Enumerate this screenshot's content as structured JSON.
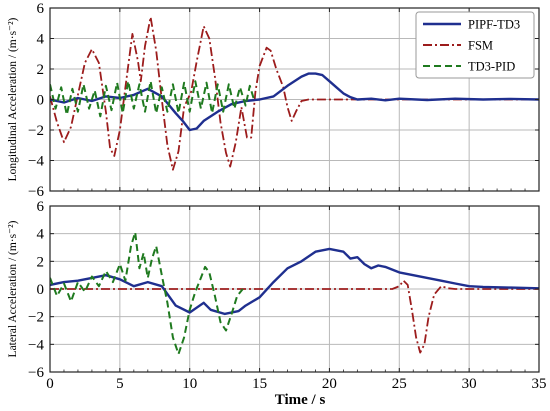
{
  "chart_data": [
    {
      "type": "line",
      "ylabel": "Longitudinal Acceleration / (m·s⁻²)",
      "xlabel": "",
      "xlim": [
        0,
        35
      ],
      "ylim": [
        -6,
        6
      ],
      "x_ticks": [
        "0",
        "5",
        "10",
        "15",
        "20",
        "25",
        "30",
        "35"
      ],
      "y_ticks": [
        "−6",
        "−4",
        "−2",
        "0",
        "2",
        "4",
        "6"
      ],
      "grid": true,
      "legend": {
        "placement": "top-right",
        "entries": [
          "PIPF-TD3",
          "FSM",
          "TD3-PID"
        ]
      },
      "series": [
        {
          "name": "PIPF-TD3",
          "color": "#1f2f8f",
          "style": "solid",
          "points": [
            [
              0,
              0
            ],
            [
              1,
              -0.2
            ],
            [
              2,
              0.1
            ],
            [
              3,
              -0.1
            ],
            [
              4,
              0.2
            ],
            [
              5,
              0.1
            ],
            [
              6,
              0.3
            ],
            [
              7,
              0.7
            ],
            [
              8,
              0.2
            ],
            [
              9,
              -0.9
            ],
            [
              9.5,
              -1.4
            ],
            [
              10,
              -2.0
            ],
            [
              10.5,
              -1.9
            ],
            [
              11,
              -1.4
            ],
            [
              12,
              -0.8
            ],
            [
              13,
              -0.3
            ],
            [
              14,
              -0.1
            ],
            [
              15,
              0.0
            ],
            [
              16,
              0.2
            ],
            [
              17,
              0.9
            ],
            [
              18,
              1.5
            ],
            [
              18.5,
              1.7
            ],
            [
              19,
              1.7
            ],
            [
              19.5,
              1.6
            ],
            [
              20,
              1.2
            ],
            [
              20.5,
              0.8
            ],
            [
              21,
              0.4
            ],
            [
              21.5,
              0.15
            ],
            [
              22,
              0.0
            ],
            [
              23,
              0.05
            ],
            [
              24,
              -0.05
            ],
            [
              25,
              0.05
            ],
            [
              27,
              -0.03
            ],
            [
              29,
              0.05
            ],
            [
              31,
              0.0
            ],
            [
              33,
              0.04
            ],
            [
              35,
              0.0
            ]
          ]
        },
        {
          "name": "FSM",
          "color": "#9c1c1c",
          "style": "dashdot",
          "points": [
            [
              0,
              0.2
            ],
            [
              0.5,
              -1.5
            ],
            [
              1,
              -2.8
            ],
            [
              1.5,
              -1.8
            ],
            [
              2,
              0.3
            ],
            [
              2.5,
              2.4
            ],
            [
              3,
              3.3
            ],
            [
              3.5,
              2.4
            ],
            [
              4,
              -0.8
            ],
            [
              4.3,
              -3.2
            ],
            [
              4.6,
              -3.7
            ],
            [
              5,
              -2.0
            ],
            [
              5.5,
              1.5
            ],
            [
              5.9,
              4.3
            ],
            [
              6.3,
              2.5
            ],
            [
              6.5,
              1.2
            ],
            [
              6.8,
              3.5
            ],
            [
              7.2,
              5.4
            ],
            [
              7.6,
              3.2
            ],
            [
              8,
              0.0
            ],
            [
              8.4,
              -3.0
            ],
            [
              8.8,
              -4.6
            ],
            [
              9.2,
              -3.4
            ],
            [
              9.6,
              -0.5
            ],
            [
              10.1,
              0.5
            ],
            [
              10.5,
              2.5
            ],
            [
              11,
              4.8
            ],
            [
              11.4,
              4.0
            ],
            [
              11.8,
              1.5
            ],
            [
              12.2,
              -1.5
            ],
            [
              12.6,
              -3.5
            ],
            [
              12.9,
              -4.4
            ],
            [
              13.3,
              -2.8
            ],
            [
              13.7,
              -0.5
            ],
            [
              14.1,
              -2.5
            ],
            [
              14.4,
              -2.5
            ],
            [
              14.7,
              0.5
            ],
            [
              15,
              2.2
            ],
            [
              15.5,
              3.4
            ],
            [
              15.8,
              3.2
            ],
            [
              16.2,
              2.0
            ],
            [
              16.7,
              0.8
            ],
            [
              17,
              -0.5
            ],
            [
              17.3,
              -1.4
            ],
            [
              17.6,
              -0.8
            ],
            [
              18,
              -0.1
            ],
            [
              18.5,
              0.0
            ],
            [
              35,
              0.0
            ]
          ]
        },
        {
          "name": "TD3-PID",
          "color": "#1f7a1f",
          "style": "dashed",
          "points": [
            [
              0,
              1.0
            ],
            [
              0.4,
              -0.6
            ],
            [
              0.8,
              0.8
            ],
            [
              1.2,
              -1.0
            ],
            [
              1.6,
              0.7
            ],
            [
              2,
              -0.8
            ],
            [
              2.4,
              1.0
            ],
            [
              2.8,
              -0.6
            ],
            [
              3.2,
              0.6
            ],
            [
              3.6,
              -1.1
            ],
            [
              4,
              0.9
            ],
            [
              4.4,
              -0.7
            ],
            [
              4.8,
              1.1
            ],
            [
              5.2,
              -0.9
            ],
            [
              5.6,
              1.2
            ],
            [
              6,
              -0.6
            ],
            [
              6.4,
              1.0
            ],
            [
              6.8,
              -0.8
            ],
            [
              7.2,
              1.2
            ],
            [
              7.6,
              -0.9
            ],
            [
              8,
              0.8
            ],
            [
              8.4,
              -0.8
            ],
            [
              8.8,
              1.0
            ],
            [
              9.2,
              -0.9
            ],
            [
              9.6,
              1.1
            ],
            [
              10,
              -0.8
            ],
            [
              10.4,
              1.2
            ],
            [
              10.8,
              -0.6
            ],
            [
              11.2,
              1.1
            ],
            [
              11.6,
              -0.9
            ],
            [
              12,
              1.0
            ],
            [
              12.4,
              -0.8
            ],
            [
              12.8,
              1.0
            ],
            [
              13.2,
              -0.6
            ],
            [
              13.6,
              0.8
            ],
            [
              14,
              -0.4
            ],
            [
              14.3,
              0.9
            ],
            [
              14.6,
              0.0
            ]
          ]
        }
      ]
    },
    {
      "type": "line",
      "ylabel": "Lateral Acceleration / (m·s⁻²)",
      "xlabel": "Time / s",
      "xlim": [
        0,
        35
      ],
      "ylim": [
        -6,
        6
      ],
      "x_ticks": [
        "0",
        "5",
        "10",
        "15",
        "20",
        "25",
        "30",
        "35"
      ],
      "y_ticks": [
        "−6",
        "−4",
        "−2",
        "0",
        "2",
        "4",
        "6"
      ],
      "grid": true,
      "series": [
        {
          "name": "PIPF-TD3",
          "color": "#1f2f8f",
          "style": "solid",
          "points": [
            [
              0,
              0.3
            ],
            [
              1,
              0.5
            ],
            [
              2,
              0.6
            ],
            [
              3,
              0.8
            ],
            [
              4,
              1.0
            ],
            [
              5,
              0.7
            ],
            [
              6,
              0.2
            ],
            [
              7,
              0.5
            ],
            [
              8,
              0.2
            ],
            [
              9,
              -1.2
            ],
            [
              10,
              -1.7
            ],
            [
              11,
              -1.0
            ],
            [
              11.5,
              -1.5
            ],
            [
              12.5,
              -1.8
            ],
            [
              13.5,
              -1.6
            ],
            [
              14,
              -1.2
            ],
            [
              15,
              -0.6
            ],
            [
              16,
              0.5
            ],
            [
              17,
              1.5
            ],
            [
              18,
              2.0
            ],
            [
              19,
              2.7
            ],
            [
              20,
              2.9
            ],
            [
              21,
              2.7
            ],
            [
              21.5,
              2.2
            ],
            [
              22,
              2.3
            ],
            [
              22.5,
              1.8
            ],
            [
              23,
              1.5
            ],
            [
              23.5,
              1.7
            ],
            [
              24,
              1.6
            ],
            [
              25,
              1.2
            ],
            [
              26,
              1.0
            ],
            [
              27,
              0.8
            ],
            [
              28,
              0.6
            ],
            [
              29,
              0.4
            ],
            [
              30,
              0.2
            ],
            [
              31,
              0.15
            ],
            [
              33,
              0.1
            ],
            [
              35,
              0.05
            ]
          ]
        },
        {
          "name": "FSM",
          "color": "#9c1c1c",
          "style": "dashdot",
          "points": [
            [
              0,
              0.0
            ],
            [
              24.5,
              0.0
            ],
            [
              25,
              0.2
            ],
            [
              25.3,
              0.6
            ],
            [
              25.6,
              0.3
            ],
            [
              25.9,
              -1.5
            ],
            [
              26.2,
              -3.5
            ],
            [
              26.5,
              -4.6
            ],
            [
              26.8,
              -4.0
            ],
            [
              27.1,
              -2.0
            ],
            [
              27.5,
              -0.4
            ],
            [
              28,
              0.2
            ],
            [
              28.5,
              0.05
            ],
            [
              29,
              0.0
            ],
            [
              35,
              0.0
            ]
          ]
        },
        {
          "name": "TD3-PID",
          "color": "#1f7a1f",
          "style": "dashed",
          "points": [
            [
              0,
              0.8
            ],
            [
              0.5,
              -0.5
            ],
            [
              1,
              0.4
            ],
            [
              1.5,
              -0.9
            ],
            [
              2,
              0.5
            ],
            [
              2.5,
              -0.2
            ],
            [
              3,
              0.9
            ],
            [
              3.5,
              0.2
            ],
            [
              4,
              1.3
            ],
            [
              4.5,
              0.5
            ],
            [
              5,
              1.8
            ],
            [
              5.4,
              0.6
            ],
            [
              5.8,
              3.1
            ],
            [
              6.1,
              4.1
            ],
            [
              6.4,
              1.5
            ],
            [
              6.7,
              2.6
            ],
            [
              7,
              0.8
            ],
            [
              7.3,
              2.2
            ],
            [
              7.6,
              3.1
            ],
            [
              8,
              1.0
            ],
            [
              8.4,
              -1.0
            ],
            [
              8.8,
              -3.5
            ],
            [
              9.2,
              -4.7
            ],
            [
              9.6,
              -3.5
            ],
            [
              10,
              -1.5
            ],
            [
              10.4,
              -0.2
            ],
            [
              10.8,
              0.8
            ],
            [
              11.1,
              1.6
            ],
            [
              11.4,
              1.2
            ],
            [
              11.8,
              -0.5
            ],
            [
              12.2,
              -2.4
            ],
            [
              12.6,
              -3.0
            ],
            [
              13,
              -1.8
            ],
            [
              13.4,
              -0.5
            ],
            [
              13.8,
              0.0
            ]
          ]
        }
      ]
    }
  ]
}
